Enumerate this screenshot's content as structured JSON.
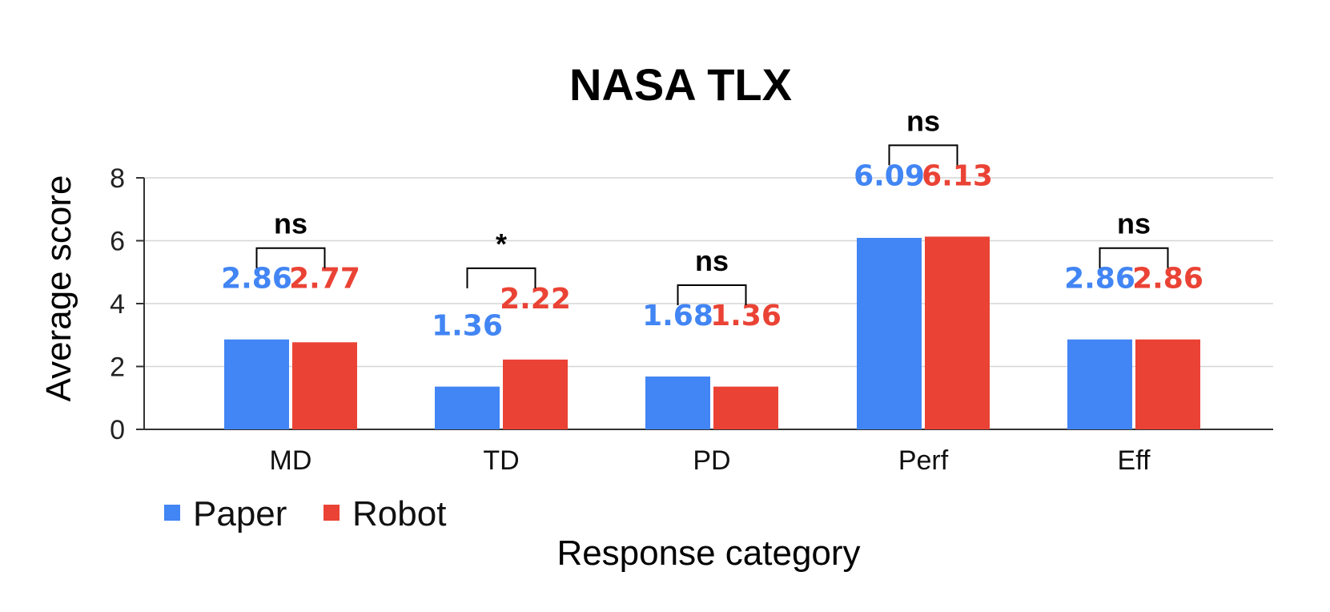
{
  "chart_data": {
    "type": "bar",
    "title": "NASA TLX",
    "xlabel": "Response category",
    "ylabel": "Average score",
    "ylim": [
      0,
      8
    ],
    "yticks": [
      0,
      2,
      4,
      6,
      8
    ],
    "grid": true,
    "legend_position": "bottom-left",
    "categories": [
      "MD",
      "TD",
      "PD",
      "Perf",
      "Eff"
    ],
    "series": [
      {
        "name": "Paper",
        "color": "#4285F4",
        "values": [
          2.86,
          1.36,
          1.68,
          6.09,
          2.86
        ],
        "labels": [
          "2.86",
          "1.36",
          "1.68",
          "6.09",
          "2.86"
        ]
      },
      {
        "name": "Robot",
        "color": "#EA4335",
        "values": [
          2.77,
          2.22,
          1.36,
          6.13,
          2.86
        ],
        "labels": [
          "2.77",
          "2.22",
          "1.36",
          "6.13",
          "2.86"
        ]
      }
    ],
    "significance": [
      "ns",
      "*",
      "ns",
      "ns",
      "ns"
    ]
  }
}
